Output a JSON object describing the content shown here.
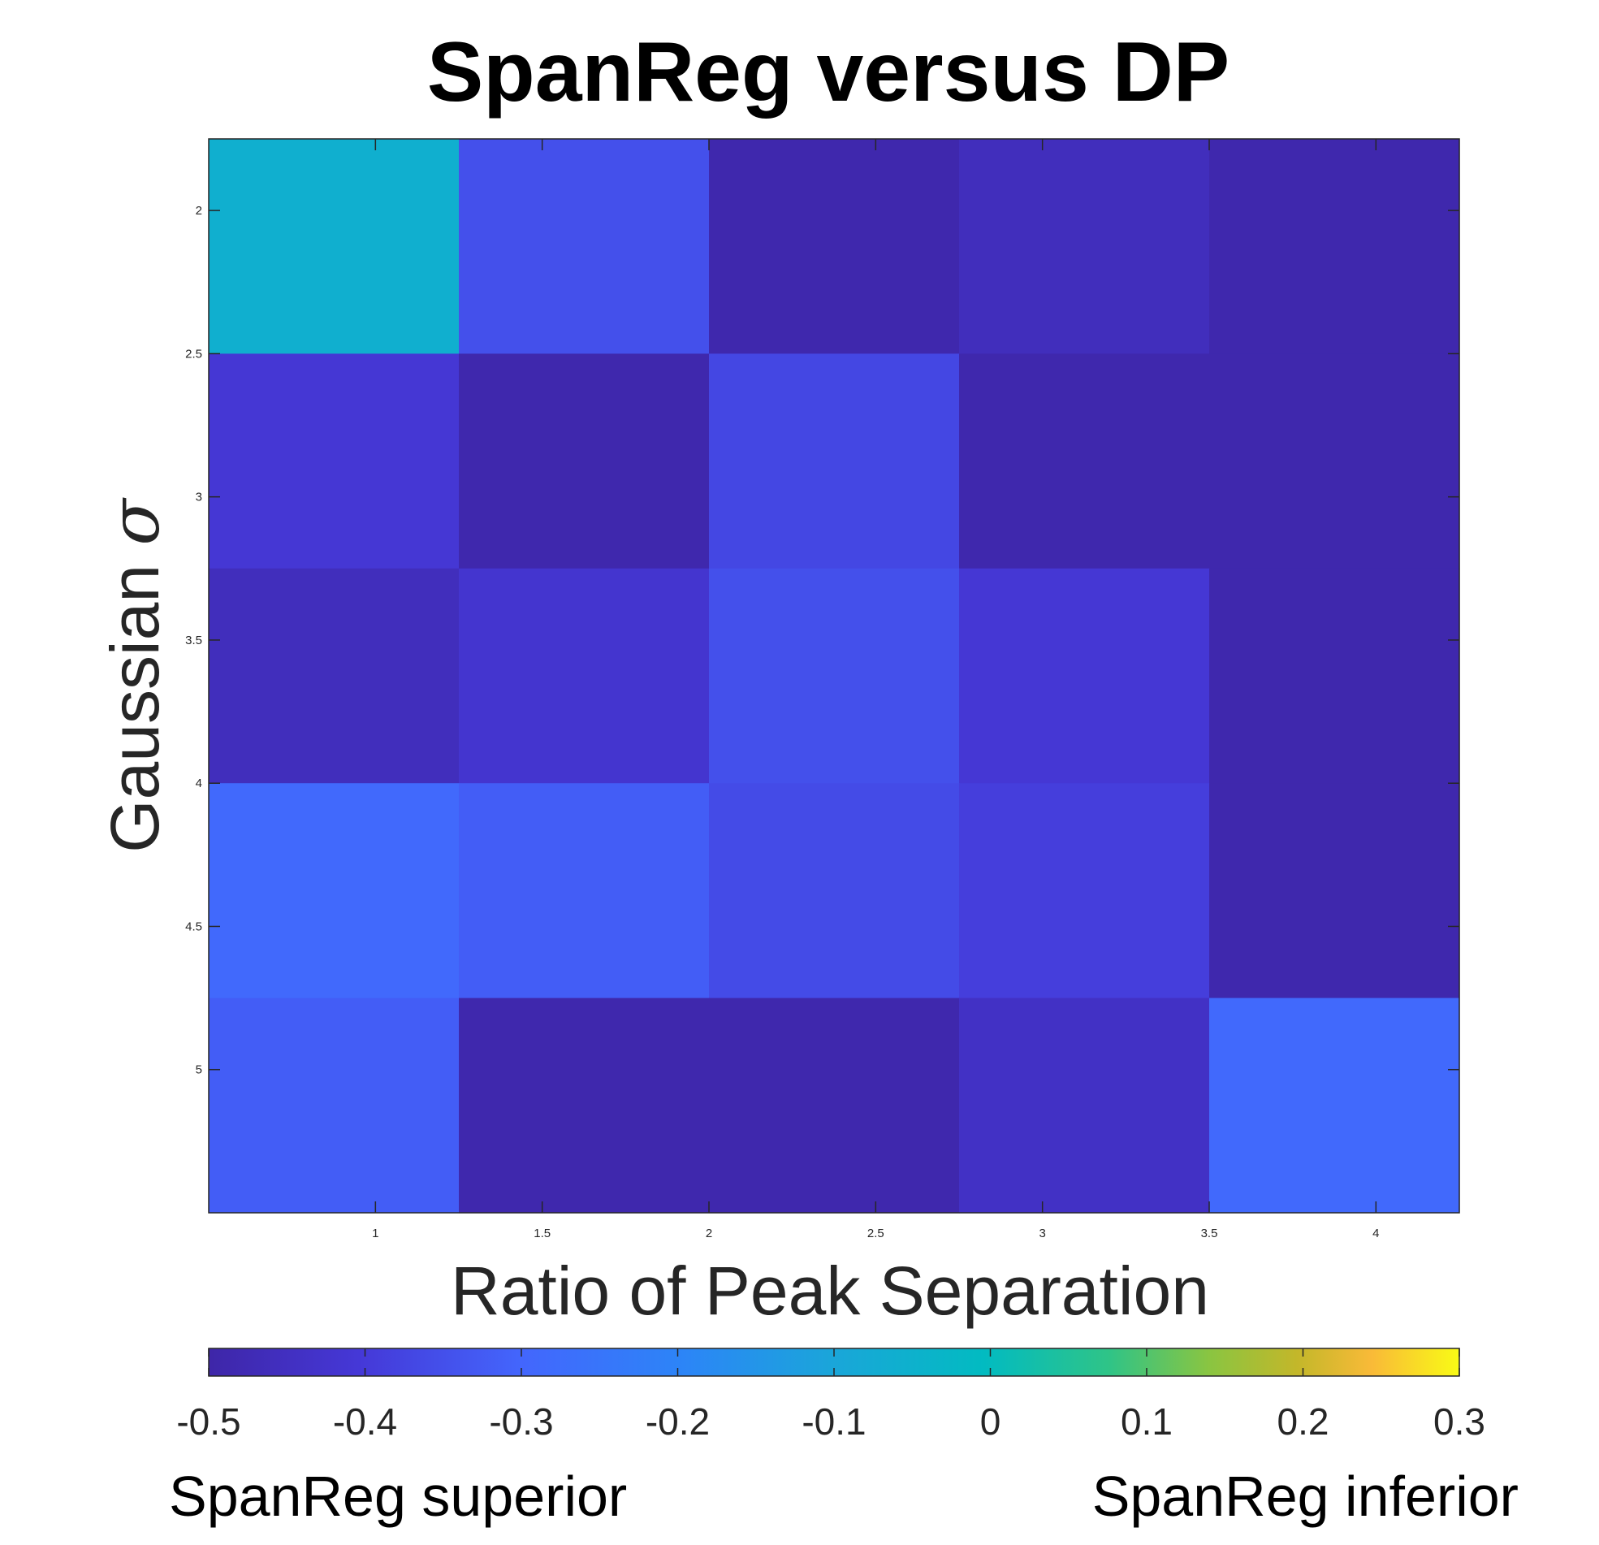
{
  "chart_data": {
    "type": "heatmap",
    "title": "SpanReg versus DP",
    "xlabel": "Ratio of Peak Separation",
    "ylabel_text": "Gaussian ",
    "ylabel_symbol": "σ",
    "x_centers": [
      0.875,
      1.625,
      2.375,
      3.125,
      3.875
    ],
    "y_centers": [
      2.125,
      2.875,
      3.625,
      4.375,
      5.125
    ],
    "xlim": [
      0.5,
      4.25
    ],
    "ylim": [
      1.75,
      5.5
    ],
    "y_reversed": true,
    "x_ticks": [
      "1",
      "1.5",
      "2",
      "2.5",
      "3",
      "3.5",
      "4"
    ],
    "x_tick_values": [
      1,
      1.5,
      2,
      2.5,
      3,
      3.5,
      4
    ],
    "y_ticks": [
      "2",
      "2.5",
      "3",
      "3.5",
      "4",
      "4.5",
      "5"
    ],
    "y_tick_values": [
      2,
      2.5,
      3,
      3.5,
      4,
      4.5,
      5
    ],
    "values": [
      [
        -0.06,
        -0.35,
        -0.49,
        -0.46,
        -0.49
      ],
      [
        -0.41,
        -0.49,
        -0.37,
        -0.49,
        -0.49
      ],
      [
        -0.46,
        -0.42,
        -0.35,
        -0.41,
        -0.49
      ],
      [
        -0.29,
        -0.32,
        -0.36,
        -0.39,
        -0.49
      ],
      [
        -0.32,
        -0.49,
        -0.49,
        -0.44,
        -0.29
      ]
    ],
    "colorbar": {
      "min": -0.5,
      "max": 0.3,
      "ticks": [
        "-0.5",
        "-0.4",
        "-0.3",
        "-0.2",
        "-0.1",
        "0",
        "0.1",
        "0.2",
        "0.3"
      ],
      "tick_values": [
        -0.5,
        -0.4,
        -0.3,
        -0.2,
        -0.1,
        0,
        0.1,
        0.2,
        0.3
      ],
      "colormap": "parula",
      "left_caption": "SpanReg superior",
      "right_caption": "SpanReg inferior"
    },
    "grid": false
  }
}
